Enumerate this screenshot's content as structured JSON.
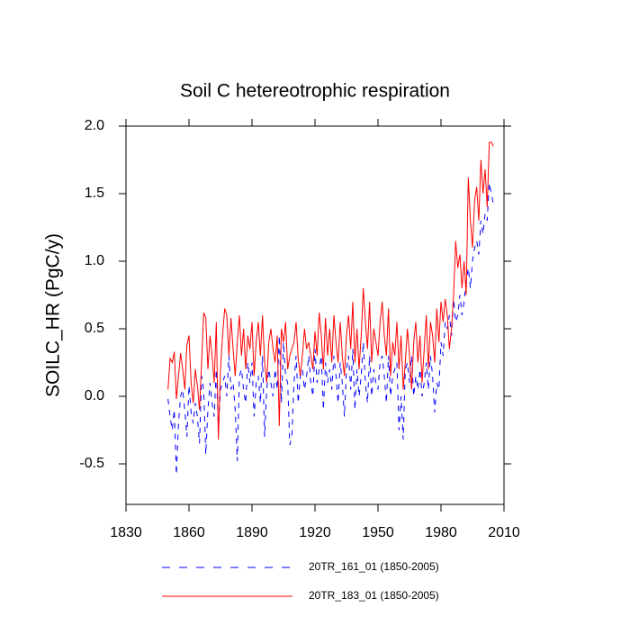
{
  "chart_data": {
    "type": "line",
    "title": "Soil C hetereotrophic respiration",
    "y_label": "SOILC_HR  (PgC/y)",
    "x": [
      1850,
      1851,
      1852,
      1853,
      1854,
      1855,
      1856,
      1857,
      1858,
      1859,
      1860,
      1861,
      1862,
      1863,
      1864,
      1865,
      1866,
      1867,
      1868,
      1869,
      1870,
      1871,
      1872,
      1873,
      1874,
      1875,
      1876,
      1877,
      1878,
      1879,
      1880,
      1881,
      1882,
      1883,
      1884,
      1885,
      1886,
      1887,
      1888,
      1889,
      1890,
      1891,
      1892,
      1893,
      1894,
      1895,
      1896,
      1897,
      1898,
      1899,
      1900,
      1901,
      1902,
      1903,
      1904,
      1905,
      1906,
      1907,
      1908,
      1909,
      1910,
      1911,
      1912,
      1913,
      1914,
      1915,
      1916,
      1917,
      1918,
      1919,
      1920,
      1921,
      1922,
      1923,
      1924,
      1925,
      1926,
      1927,
      1928,
      1929,
      1930,
      1931,
      1932,
      1933,
      1934,
      1935,
      1936,
      1937,
      1938,
      1939,
      1940,
      1941,
      1942,
      1943,
      1944,
      1945,
      1946,
      1947,
      1948,
      1949,
      1950,
      1951,
      1952,
      1953,
      1954,
      1955,
      1956,
      1957,
      1958,
      1959,
      1960,
      1961,
      1962,
      1963,
      1964,
      1965,
      1966,
      1967,
      1968,
      1969,
      1970,
      1971,
      1972,
      1973,
      1974,
      1975,
      1976,
      1977,
      1978,
      1979,
      1980,
      1981,
      1982,
      1983,
      1984,
      1985,
      1986,
      1987,
      1988,
      1989,
      1990,
      1991,
      1992,
      1993,
      1994,
      1995,
      1996,
      1997,
      1998,
      1999,
      2000,
      2001,
      2002,
      2003,
      2004,
      2005
    ],
    "series": [
      {
        "name": "20TR_161_01 (1850-2005)",
        "color": "#0000ff",
        "line_style": "dashed",
        "values": [
          -0.02,
          -0.15,
          -0.25,
          -0.1,
          -0.58,
          -0.2,
          0.0,
          0.05,
          -0.1,
          -0.3,
          0.08,
          -0.12,
          -0.2,
          -0.05,
          -0.15,
          -0.35,
          0.15,
          0.05,
          -0.43,
          -0.1,
          0.1,
          -0.05,
          -0.15,
          0.2,
          -0.25,
          0.05,
          0.1,
          0.15,
          0.0,
          0.3,
          0.05,
          0.1,
          -0.1,
          -0.48,
          0.15,
          0.2,
          0.05,
          -0.05,
          0.25,
          0.1,
          0.25,
          -0.15,
          0.1,
          0.15,
          -0.05,
          0.3,
          -0.3,
          0.05,
          0.2,
          0.1,
          0.0,
          0.2,
          0.05,
          0.45,
          -0.05,
          0.4,
          0.15,
          0.1,
          -0.36,
          -0.3,
          0.1,
          0.3,
          -0.05,
          0.15,
          0.2,
          0.05,
          0.15,
          0.3,
          0.1,
          0.0,
          0.35,
          0.1,
          0.2,
          0.3,
          -0.1,
          0.25,
          0.1,
          0.2,
          0.05,
          0.3,
          0.15,
          -0.05,
          0.25,
          0.1,
          -0.15,
          0.2,
          0.3,
          0.05,
          0.35,
          -0.1,
          0.2,
          0.0,
          0.15,
          0.4,
          0.1,
          -0.05,
          0.3,
          0.0,
          0.2,
          0.1,
          0.05,
          0.25,
          0.3,
          0.15,
          -0.05,
          0.3,
          0.0,
          0.15,
          0.2,
          0.25,
          -0.25,
          0.0,
          -0.32,
          0.2,
          0.25,
          0.1,
          0.3,
          0.0,
          0.15,
          0.05,
          0.2,
          0.0,
          0.1,
          0.25,
          0.05,
          0.3,
          0.15,
          -0.12,
          0.1,
          0.05,
          0.4,
          0.3,
          0.55,
          0.5,
          0.6,
          0.45,
          0.72,
          0.55,
          0.6,
          0.75,
          0.6,
          0.7,
          0.85,
          0.95,
          0.8,
          1.0,
          1.1,
          1.15,
          1.05,
          1.3,
          1.2,
          1.35,
          1.3,
          1.58,
          1.5,
          1.42
        ]
      },
      {
        "name": "20TR_183_01 (1850-2005)",
        "color": "#ff0000",
        "line_style": "solid",
        "values": [
          0.05,
          0.28,
          0.25,
          0.33,
          -0.02,
          0.15,
          0.32,
          0.2,
          0.05,
          0.38,
          0.45,
          0.1,
          -0.05,
          0.2,
          0.08,
          -0.1,
          0.25,
          0.62,
          0.58,
          0.2,
          0.45,
          0.3,
          0.1,
          0.55,
          -0.32,
          0.2,
          0.45,
          0.65,
          0.6,
          0.3,
          0.58,
          0.35,
          0.15,
          0.4,
          0.6,
          0.3,
          0.5,
          0.2,
          0.45,
          0.35,
          0.55,
          0.15,
          0.4,
          0.55,
          0.3,
          0.6,
          0.25,
          0.1,
          0.4,
          0.5,
          0.35,
          0.25,
          0.45,
          -0.22,
          0.5,
          0.4,
          0.55,
          0.2,
          0.3,
          0.35,
          0.4,
          0.55,
          0.28,
          0.15,
          0.3,
          0.5,
          0.35,
          0.4,
          0.3,
          0.2,
          0.48,
          0.3,
          0.62,
          0.45,
          0.2,
          0.58,
          0.3,
          0.5,
          0.25,
          0.6,
          0.4,
          0.25,
          0.55,
          0.3,
          0.15,
          0.45,
          0.6,
          0.35,
          0.7,
          0.25,
          0.5,
          0.2,
          0.45,
          0.8,
          0.55,
          0.35,
          0.7,
          0.25,
          0.5,
          0.4,
          0.3,
          0.55,
          0.7,
          0.45,
          0.3,
          0.65,
          0.15,
          0.4,
          0.3,
          0.55,
          0.2,
          0.45,
          0.05,
          0.25,
          0.5,
          0.3,
          0.05,
          0.4,
          0.55,
          0.25,
          0.45,
          0.1,
          0.35,
          0.6,
          0.2,
          0.55,
          0.45,
          0.25,
          0.65,
          0.4,
          0.7,
          0.55,
          0.72,
          0.6,
          0.35,
          0.5,
          0.75,
          1.15,
          0.95,
          1.05,
          0.8,
          1.0,
          0.75,
          1.62,
          1.3,
          1.1,
          1.45,
          1.55,
          1.3,
          1.75,
          1.5,
          1.68,
          1.4,
          1.88,
          1.88,
          1.85
        ]
      }
    ],
    "xlim": [
      1830,
      2010
    ],
    "xticks": [
      1830,
      1860,
      1890,
      1920,
      1950,
      1980,
      2010
    ],
    "ylim": [
      -0.8,
      2.0
    ],
    "yticks": [
      {
        "value": 2.0,
        "label": "2.0"
      },
      1.5,
      {
        "value": 1.0,
        "label": "1.0"
      },
      0.5,
      {
        "value": 0.0,
        "label": "0.0"
      },
      -0.5
    ]
  }
}
